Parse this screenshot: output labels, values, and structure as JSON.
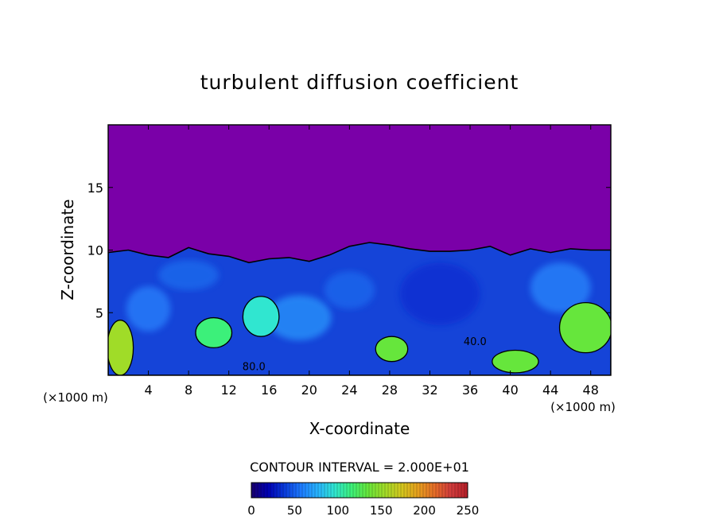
{
  "chart_data": {
    "type": "heatmap",
    "title": "turbulent diffusion coefficient",
    "xlabel": "X-coordinate",
    "ylabel": "Z-coordinate",
    "x_unit_left": "(×1000 m)",
    "x_unit_right": "(×1000 m)",
    "xlim": [
      0,
      50
    ],
    "ylim": [
      0,
      20
    ],
    "x_ticks": [
      "4",
      "8",
      "12",
      "16",
      "20",
      "24",
      "28",
      "32",
      "36",
      "40",
      "44",
      "48"
    ],
    "y_ticks": [
      "5",
      "10",
      "15"
    ],
    "contour_interval_label": "CONTOUR INTERVAL = 2.000E+01",
    "contour_labels": [
      {
        "text": "80.0",
        "x": 14.5,
        "z": 0.3
      },
      {
        "text": "40.0",
        "x": 36.5,
        "z": 2.3
      }
    ],
    "colorbar": {
      "range": [
        0,
        250
      ],
      "tick_labels": [
        "0",
        "50",
        "100",
        "150",
        "200",
        "250"
      ],
      "colors": [
        "#1a006e",
        "#0000b4",
        "#0a3cdc",
        "#1e7cff",
        "#28b4ff",
        "#30e6d0",
        "#3cf07a",
        "#66e63c",
        "#a0dc28",
        "#d2c81e",
        "#e6a01e",
        "#e66e28",
        "#d23c3c",
        "#b41e28"
      ]
    },
    "background_value_color": "#7a00a8",
    "flow_top_km": {
      "x": [
        0,
        2,
        4,
        6,
        8,
        10,
        12,
        14,
        16,
        18,
        20,
        22,
        24,
        26,
        28,
        30,
        32,
        34,
        36,
        38,
        40,
        42,
        44,
        46,
        48,
        50
      ],
      "z": [
        9.8,
        10.0,
        9.6,
        9.4,
        10.2,
        9.7,
        9.5,
        9.0,
        9.3,
        9.4,
        9.1,
        9.6,
        10.3,
        10.6,
        10.4,
        10.1,
        9.9,
        9.9,
        10.0,
        10.3,
        9.6,
        10.1,
        9.8,
        10.1,
        10.0,
        10.0
      ]
    },
    "high_value_regions": [
      {
        "x": 10.5,
        "z": 3.4,
        "rx": 1.8,
        "rz": 1.2,
        "value": 120
      },
      {
        "x": 28.2,
        "z": 2.1,
        "rx": 1.6,
        "rz": 1.0,
        "value": 130
      },
      {
        "x": 40.5,
        "z": 1.1,
        "rx": 2.3,
        "rz": 0.9,
        "value": 140
      },
      {
        "x": 1.2,
        "z": 2.2,
        "rx": 1.3,
        "rz": 2.2,
        "value": 150
      },
      {
        "x": 47.5,
        "z": 3.8,
        "rx": 2.6,
        "rz": 2.0,
        "value": 130
      },
      {
        "x": 15.2,
        "z": 4.7,
        "rx": 1.8,
        "rz": 1.6,
        "value": 90
      }
    ]
  }
}
